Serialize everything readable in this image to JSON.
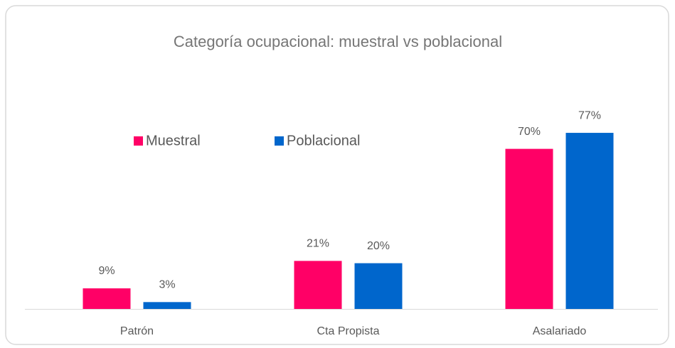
{
  "chart_data": {
    "type": "bar",
    "title": "Categoría ocupacional: muestral vs poblacional",
    "categories": [
      "Patrón",
      "Cta Propista",
      "Asalariado"
    ],
    "series": [
      {
        "name": "Muestral",
        "color": "#ff0066",
        "values": [
          9,
          21,
          70
        ],
        "value_labels": [
          "9%",
          "21%",
          "70%"
        ]
      },
      {
        "name": "Poblacional",
        "color": "#0066cc",
        "values": [
          3,
          20,
          77
        ],
        "value_labels": [
          "3%",
          "20%",
          "77%"
        ]
      }
    ]
  }
}
